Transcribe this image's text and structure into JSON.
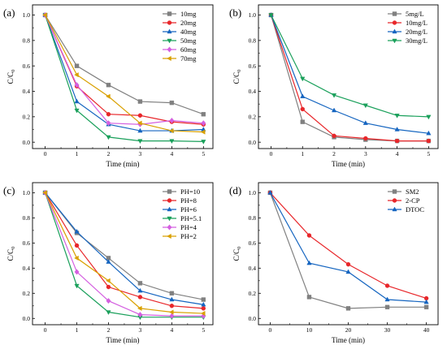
{
  "chart_data": [
    {
      "type": "line",
      "panel_label": "(a)",
      "xlabel": "Time (min)",
      "ylabel": "C/C",
      "ylabel_sub": "0",
      "x": [
        0,
        1,
        2,
        3,
        4,
        5
      ],
      "xticks": [
        "0",
        "1",
        "2",
        "3",
        "4",
        "5"
      ],
      "xlim": [
        -0.4,
        5.3
      ],
      "ylim": [
        -0.05,
        1.08
      ],
      "yticks": [
        "0.0",
        "0.2",
        "0.4",
        "0.6",
        "0.8",
        "1.0"
      ],
      "legend_position": "top-right",
      "series": [
        {
          "name": "10mg",
          "color": "#808080",
          "marker": "square",
          "values": [
            1.0,
            0.6,
            0.45,
            0.32,
            0.31,
            0.22
          ]
        },
        {
          "name": "20mg",
          "color": "#e8262a",
          "marker": "circle",
          "values": [
            1.0,
            0.44,
            0.22,
            0.21,
            0.16,
            0.14
          ]
        },
        {
          "name": "40mg",
          "color": "#1565c0",
          "marker": "triangle-up",
          "values": [
            1.0,
            0.32,
            0.14,
            0.09,
            0.09,
            0.1
          ]
        },
        {
          "name": "50mg",
          "color": "#1aa05b",
          "marker": "triangle-down",
          "values": [
            1.0,
            0.25,
            0.04,
            0.01,
            0.01,
            0.005
          ]
        },
        {
          "name": "60mg",
          "color": "#d45fe0",
          "marker": "diamond",
          "values": [
            1.0,
            0.45,
            0.15,
            0.14,
            0.17,
            0.15
          ]
        },
        {
          "name": "70mg",
          "color": "#d9a000",
          "marker": "triangle-left",
          "values": [
            1.0,
            0.53,
            0.36,
            0.15,
            0.09,
            0.08
          ]
        }
      ]
    },
    {
      "type": "line",
      "panel_label": "(b)",
      "xlabel": "Time (min)",
      "ylabel": "C/C",
      "ylabel_sub": "0",
      "x": [
        0,
        1,
        2,
        3,
        4,
        5
      ],
      "xticks": [
        "0",
        "1",
        "2",
        "3",
        "4",
        "5"
      ],
      "xlim": [
        -0.4,
        5.3
      ],
      "ylim": [
        -0.05,
        1.08
      ],
      "yticks": [
        "0.0",
        "0.2",
        "0.4",
        "0.6",
        "0.8",
        "1.0"
      ],
      "legend_position": "top-right",
      "series": [
        {
          "name": "5mg/L",
          "color": "#808080",
          "marker": "square",
          "values": [
            1.0,
            0.16,
            0.04,
            0.02,
            0.01,
            0.01
          ]
        },
        {
          "name": "10mg/L",
          "color": "#e8262a",
          "marker": "circle",
          "values": [
            1.0,
            0.26,
            0.05,
            0.03,
            0.01,
            0.01
          ]
        },
        {
          "name": "20mg/L",
          "color": "#1565c0",
          "marker": "triangle-up",
          "values": [
            1.0,
            0.36,
            0.25,
            0.15,
            0.1,
            0.07
          ]
        },
        {
          "name": "30mg/L",
          "color": "#1aa05b",
          "marker": "triangle-down",
          "values": [
            1.0,
            0.5,
            0.37,
            0.29,
            0.21,
            0.2
          ]
        }
      ]
    },
    {
      "type": "line",
      "panel_label": "(c)",
      "xlabel": "Time (min)",
      "ylabel": "C/C",
      "ylabel_sub": "0",
      "x": [
        0,
        1,
        2,
        3,
        4,
        5
      ],
      "xticks": [
        "0",
        "1",
        "2",
        "3",
        "4",
        "5"
      ],
      "xlim": [
        -0.4,
        5.3
      ],
      "ylim": [
        -0.05,
        1.08
      ],
      "yticks": [
        "0.0",
        "0.2",
        "0.4",
        "0.6",
        "0.8",
        "1.0"
      ],
      "legend_position": "top-right",
      "series": [
        {
          "name": "PH=10",
          "color": "#808080",
          "marker": "square",
          "values": [
            1.0,
            0.68,
            0.48,
            0.28,
            0.2,
            0.15
          ]
        },
        {
          "name": "PH=8",
          "color": "#e8262a",
          "marker": "circle",
          "values": [
            1.0,
            0.58,
            0.25,
            0.17,
            0.1,
            0.08
          ]
        },
        {
          "name": "PH=6",
          "color": "#1565c0",
          "marker": "triangle-up",
          "values": [
            1.0,
            0.69,
            0.45,
            0.22,
            0.15,
            0.11
          ]
        },
        {
          "name": "PH=5.1",
          "color": "#1aa05b",
          "marker": "triangle-down",
          "values": [
            1.0,
            0.26,
            0.05,
            0.01,
            0.01,
            0.01
          ]
        },
        {
          "name": "PH=4",
          "color": "#d45fe0",
          "marker": "diamond",
          "values": [
            1.0,
            0.37,
            0.14,
            0.03,
            0.02,
            0.02
          ]
        },
        {
          "name": "PH=2",
          "color": "#d9a000",
          "marker": "triangle-left",
          "values": [
            1.0,
            0.48,
            0.3,
            0.08,
            0.05,
            0.04
          ]
        }
      ]
    },
    {
      "type": "line",
      "panel_label": "(d)",
      "xlabel": "Time (min)",
      "ylabel": "C/C",
      "ylabel_sub": "0",
      "x": [
        0,
        10,
        20,
        30,
        40
      ],
      "xticks": [
        "0",
        "10",
        "20",
        "30",
        "40"
      ],
      "xlim": [
        -3,
        43
      ],
      "ylim": [
        -0.05,
        1.08
      ],
      "yticks": [
        "0.0",
        "0.2",
        "0.4",
        "0.6",
        "0.8",
        "1.0"
      ],
      "legend_position": "top-right",
      "series": [
        {
          "name": "SM2",
          "color": "#808080",
          "marker": "square",
          "values": [
            1.0,
            0.17,
            0.08,
            0.09,
            0.09
          ]
        },
        {
          "name": "2-CP",
          "color": "#e8262a",
          "marker": "circle",
          "values": [
            1.0,
            0.66,
            0.43,
            0.26,
            0.16
          ]
        },
        {
          "name": "DTOC",
          "color": "#1565c0",
          "marker": "triangle-up",
          "values": [
            1.0,
            0.44,
            0.37,
            0.15,
            0.13
          ]
        }
      ]
    }
  ]
}
